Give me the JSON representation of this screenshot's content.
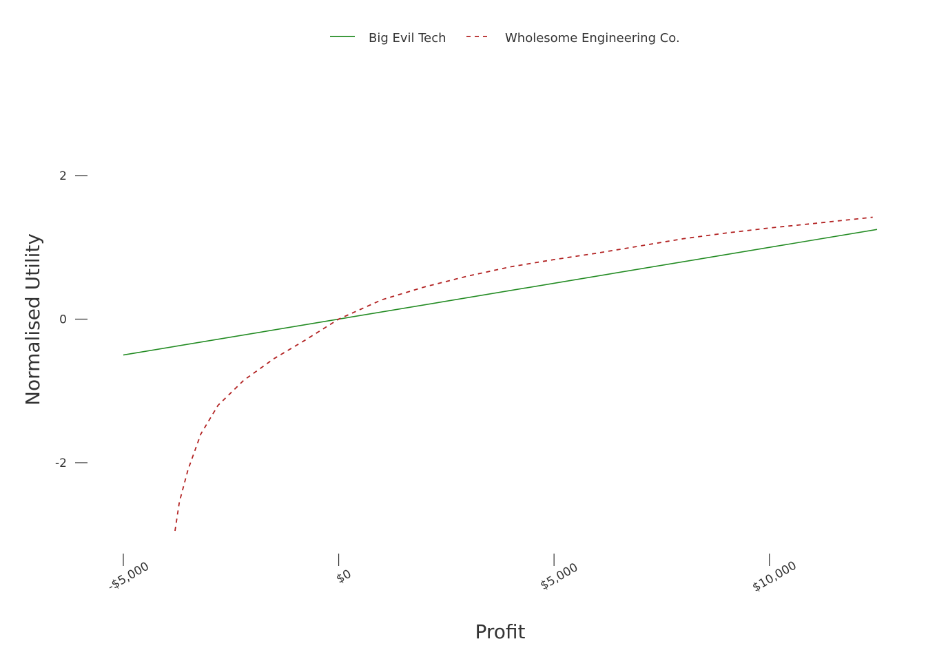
{
  "chart_data": {
    "type": "line",
    "xlabel": "Profit",
    "ylabel": "Normalised Utility",
    "xlim": [
      -5000,
      12500
    ],
    "ylim": [
      -3,
      2
    ],
    "x_ticks": [
      {
        "value": -5000,
        "label": "-$5,000"
      },
      {
        "value": 0,
        "label": "$0"
      },
      {
        "value": 5000,
        "label": "$5,000"
      },
      {
        "value": 10000,
        "label": "$10,000"
      }
    ],
    "y_ticks": [
      {
        "value": 2,
        "label": "2"
      },
      {
        "value": 0,
        "label": "0"
      },
      {
        "value": -2,
        "label": "-2"
      }
    ],
    "grid": false,
    "legend_position": "top",
    "series": [
      {
        "name": "Big Evil Tech",
        "color": "#228b22",
        "dash": "solid",
        "x": [
          -5000,
          12500
        ],
        "y": [
          -0.5,
          1.25
        ]
      },
      {
        "name": "Wholesome Engineering Co.",
        "color": "#b22222",
        "dash": "dashed",
        "x": [
          -3800,
          -3700,
          -3500,
          -3200,
          -2800,
          -2200,
          -1500,
          -800,
          0,
          1000,
          2000,
          3000,
          4000,
          5000,
          6000,
          7000,
          8000,
          9000,
          10000,
          11000,
          12400
        ],
        "y": [
          -2.95,
          -2.55,
          -2.1,
          -1.6,
          -1.2,
          -0.85,
          -0.55,
          -0.3,
          0,
          0.27,
          0.45,
          0.6,
          0.73,
          0.83,
          0.92,
          1.02,
          1.12,
          1.2,
          1.27,
          1.33,
          1.42
        ]
      }
    ]
  }
}
